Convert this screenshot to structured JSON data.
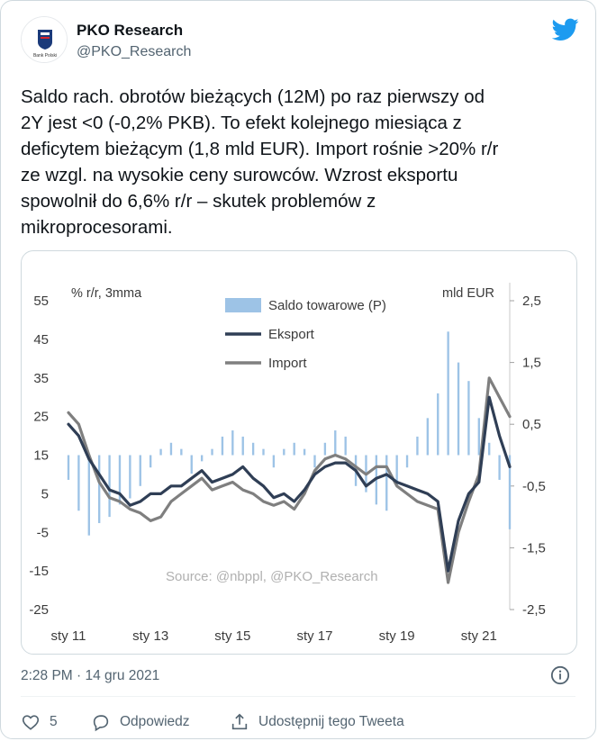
{
  "account": {
    "name": "PKO Research",
    "handle": "@PKO_Research",
    "avatar_text": "Bank Polski"
  },
  "tweet": {
    "text": "Saldo rach. obrotów bieżących (12M) po raz pierwszy od\n2Y jest <0 (-0,2% PKB). To efekt kolejnego miesiąca z\ndeficytem bieżącym (1,8 mld EUR). Import rośnie >20% r/r\nze wzgl. na wysokie ceny surowców. Wzrost eksportu\nspowolnił do 6,6% r/r – skutek problemów z\nmikroprocesorami.",
    "timestamp": "2:28 PM · 14 gru 2021"
  },
  "actions": {
    "likes": "5",
    "reply_label": "Odpowiedz",
    "share_label": "Udostępnij tego Tweeta"
  },
  "icons": [
    "twitter-bird-icon",
    "info-icon",
    "heart-icon",
    "reply-icon",
    "share-icon"
  ],
  "colors": {
    "twitter_blue": "#1d9bf0",
    "saldo_bars": "#9dc3e6",
    "eksport_line": "#2f3e55",
    "import_line": "#7f7f7f"
  },
  "chart_data": {
    "type": "line",
    "left_axis_label": "% r/r, 3mma",
    "right_axis_label": "mld EUR",
    "source": "Source: @nbppl, @PKO_Research",
    "x_ticks": [
      "sty 11",
      "sty 13",
      "sty 15",
      "sty 17",
      "sty 19",
      "sty 21"
    ],
    "y_left_ticks": [
      "55",
      "45",
      "35",
      "25",
      "15",
      "5",
      "-5",
      "-15",
      "-25"
    ],
    "y_right_ticks": [
      "2,5",
      "1,5",
      "0,5",
      "-0,5",
      "-1,5",
      "-2,5"
    ],
    "ylim_left": [
      -25,
      55
    ],
    "ylim_right": [
      -2.5,
      2.5
    ],
    "x_range": [
      "2011-01",
      "2021-10"
    ],
    "legend": [
      "Saldo towarowe (P)",
      "Eksport",
      "Import"
    ],
    "series": [
      {
        "name": "Eksport",
        "axis": "left",
        "points": [
          [
            "2011-01",
            23
          ],
          [
            "2011-04",
            20
          ],
          [
            "2011-07",
            14
          ],
          [
            "2011-10",
            10
          ],
          [
            "2012-01",
            6
          ],
          [
            "2012-04",
            5
          ],
          [
            "2012-07",
            2
          ],
          [
            "2012-10",
            3
          ],
          [
            "2013-01",
            5
          ],
          [
            "2013-04",
            5
          ],
          [
            "2013-07",
            7
          ],
          [
            "2013-10",
            7
          ],
          [
            "2014-01",
            9
          ],
          [
            "2014-04",
            11
          ],
          [
            "2014-07",
            8
          ],
          [
            "2014-10",
            9
          ],
          [
            "2015-01",
            10
          ],
          [
            "2015-04",
            12
          ],
          [
            "2015-07",
            9
          ],
          [
            "2015-10",
            7
          ],
          [
            "2016-01",
            4
          ],
          [
            "2016-04",
            5
          ],
          [
            "2016-07",
            3
          ],
          [
            "2016-10",
            6
          ],
          [
            "2017-01",
            10
          ],
          [
            "2017-04",
            12
          ],
          [
            "2017-07",
            13
          ],
          [
            "2017-10",
            13
          ],
          [
            "2018-01",
            11
          ],
          [
            "2018-04",
            7
          ],
          [
            "2018-07",
            9
          ],
          [
            "2018-10",
            10
          ],
          [
            "2019-01",
            8
          ],
          [
            "2019-04",
            7
          ],
          [
            "2019-07",
            6
          ],
          [
            "2019-10",
            5
          ],
          [
            "2020-01",
            3
          ],
          [
            "2020-04",
            -15
          ],
          [
            "2020-07",
            -2
          ],
          [
            "2020-10",
            5
          ],
          [
            "2021-01",
            8
          ],
          [
            "2021-04",
            30
          ],
          [
            "2021-07",
            20
          ],
          [
            "2021-10",
            12
          ]
        ]
      },
      {
        "name": "Import",
        "axis": "left",
        "points": [
          [
            "2011-01",
            26
          ],
          [
            "2011-04",
            23
          ],
          [
            "2011-07",
            15
          ],
          [
            "2011-10",
            8
          ],
          [
            "2012-01",
            4
          ],
          [
            "2012-04",
            3
          ],
          [
            "2012-07",
            1
          ],
          [
            "2012-10",
            0
          ],
          [
            "2013-01",
            -2
          ],
          [
            "2013-04",
            -1
          ],
          [
            "2013-07",
            3
          ],
          [
            "2013-10",
            5
          ],
          [
            "2014-01",
            7
          ],
          [
            "2014-04",
            9
          ],
          [
            "2014-07",
            6
          ],
          [
            "2014-10",
            7
          ],
          [
            "2015-01",
            8
          ],
          [
            "2015-04",
            6
          ],
          [
            "2015-07",
            5
          ],
          [
            "2015-10",
            3
          ],
          [
            "2016-01",
            2
          ],
          [
            "2016-04",
            3
          ],
          [
            "2016-07",
            1
          ],
          [
            "2016-10",
            5
          ],
          [
            "2017-01",
            11
          ],
          [
            "2017-04",
            14
          ],
          [
            "2017-07",
            15
          ],
          [
            "2017-10",
            14
          ],
          [
            "2018-01",
            12
          ],
          [
            "2018-04",
            10
          ],
          [
            "2018-07",
            12
          ],
          [
            "2018-10",
            12
          ],
          [
            "2019-01",
            7
          ],
          [
            "2019-04",
            5
          ],
          [
            "2019-07",
            3
          ],
          [
            "2019-10",
            2
          ],
          [
            "2020-01",
            1
          ],
          [
            "2020-04",
            -18
          ],
          [
            "2020-07",
            -5
          ],
          [
            "2020-10",
            3
          ],
          [
            "2021-01",
            10
          ],
          [
            "2021-04",
            35
          ],
          [
            "2021-07",
            30
          ],
          [
            "2021-10",
            25
          ]
        ]
      },
      {
        "name": "Saldo towarowe (P)",
        "axis": "right",
        "type": "bar",
        "points": [
          [
            "2011-01",
            -0.4
          ],
          [
            "2011-04",
            -0.9
          ],
          [
            "2011-07",
            -1.3
          ],
          [
            "2011-10",
            -1.1
          ],
          [
            "2012-01",
            -1.0
          ],
          [
            "2012-04",
            -0.8
          ],
          [
            "2012-07",
            -0.7
          ],
          [
            "2012-10",
            -0.5
          ],
          [
            "2013-01",
            -0.2
          ],
          [
            "2013-04",
            0.1
          ],
          [
            "2013-07",
            0.2
          ],
          [
            "2013-10",
            0.1
          ],
          [
            "2014-01",
            -0.3
          ],
          [
            "2014-04",
            -0.1
          ],
          [
            "2014-07",
            0.1
          ],
          [
            "2014-10",
            0.3
          ],
          [
            "2015-01",
            0.4
          ],
          [
            "2015-04",
            0.3
          ],
          [
            "2015-07",
            0.2
          ],
          [
            "2015-10",
            0.1
          ],
          [
            "2016-01",
            -0.2
          ],
          [
            "2016-04",
            0.1
          ],
          [
            "2016-07",
            0.2
          ],
          [
            "2016-10",
            0.1
          ],
          [
            "2017-01",
            -0.2
          ],
          [
            "2017-04",
            0.2
          ],
          [
            "2017-07",
            0.4
          ],
          [
            "2017-10",
            0.3
          ],
          [
            "2018-01",
            -0.5
          ],
          [
            "2018-04",
            -0.6
          ],
          [
            "2018-07",
            -0.8
          ],
          [
            "2018-10",
            -0.9
          ],
          [
            "2019-01",
            -0.5
          ],
          [
            "2019-04",
            -0.2
          ],
          [
            "2019-07",
            0.3
          ],
          [
            "2019-10",
            0.6
          ],
          [
            "2020-01",
            1.0
          ],
          [
            "2020-04",
            2.0
          ],
          [
            "2020-07",
            1.5
          ],
          [
            "2020-10",
            1.2
          ],
          [
            "2021-01",
            0.6
          ],
          [
            "2021-04",
            0.2
          ],
          [
            "2021-07",
            -0.4
          ],
          [
            "2021-10",
            -1.2
          ]
        ]
      }
    ]
  }
}
